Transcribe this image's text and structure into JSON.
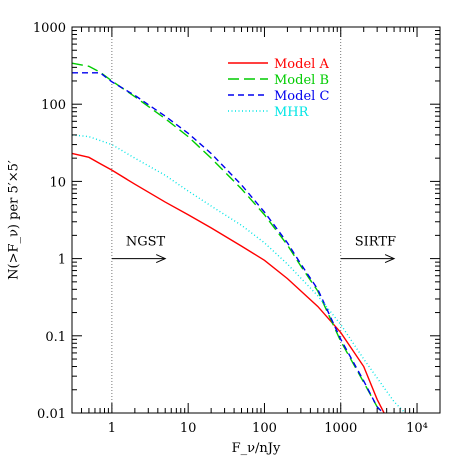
{
  "chart_data": {
    "type": "line",
    "x_scale": "log",
    "y_scale": "log",
    "xlim": [
      0.3,
      20000
    ],
    "ylim": [
      0.01,
      1000
    ],
    "xlabel": "F_ν/nJy",
    "ylabel": "N(>F_ν) per 5′×5′",
    "x_ticks": [
      {
        "value": 1,
        "label": "1"
      },
      {
        "value": 10,
        "label": "10"
      },
      {
        "value": 100,
        "label": "100"
      },
      {
        "value": 1000,
        "label": "1000"
      },
      {
        "value": 10000,
        "label": "10⁴"
      }
    ],
    "y_ticks": [
      {
        "value": 0.01,
        "label": "0.01"
      },
      {
        "value": 0.1,
        "label": "0.1"
      },
      {
        "value": 1,
        "label": "1"
      },
      {
        "value": 10,
        "label": "10"
      },
      {
        "value": 100,
        "label": "100"
      },
      {
        "value": 1000,
        "label": "1000"
      }
    ],
    "grid": false,
    "legend_position": "top-right",
    "series": [
      {
        "name": "Model A",
        "color": "#ff0000",
        "dash": "solid",
        "points": [
          [
            0.3,
            23
          ],
          [
            0.5,
            20.5
          ],
          [
            0.7,
            17
          ],
          [
            1,
            14
          ],
          [
            2,
            9.2
          ],
          [
            5,
            5.4
          ],
          [
            10,
            3.7
          ],
          [
            20,
            2.5
          ],
          [
            50,
            1.45
          ],
          [
            100,
            0.95
          ],
          [
            200,
            0.55
          ],
          [
            500,
            0.24
          ],
          [
            1000,
            0.11
          ],
          [
            2000,
            0.04
          ],
          [
            3000,
            0.015
          ],
          [
            3700,
            0.01
          ]
        ]
      },
      {
        "name": "Model B",
        "color": "#00cc00",
        "dash": "long-dash",
        "points": [
          [
            0.3,
            340
          ],
          [
            0.5,
            310
          ],
          [
            0.7,
            260
          ],
          [
            1,
            200
          ],
          [
            2,
            125
          ],
          [
            5,
            65
          ],
          [
            10,
            38
          ],
          [
            20,
            20
          ],
          [
            50,
            8
          ],
          [
            100,
            3.7
          ],
          [
            200,
            1.5
          ],
          [
            300,
            0.8
          ],
          [
            500,
            0.38
          ],
          [
            1000,
            0.085
          ],
          [
            2000,
            0.025
          ],
          [
            3000,
            0.012
          ],
          [
            3500,
            0.01
          ]
        ]
      },
      {
        "name": "Model C",
        "color": "#0000ee",
        "dash": "short-dash",
        "points": [
          [
            0.3,
            255
          ],
          [
            0.7,
            255
          ],
          [
            1,
            195
          ],
          [
            2,
            130
          ],
          [
            5,
            70
          ],
          [
            10,
            42
          ],
          [
            20,
            23
          ],
          [
            50,
            9
          ],
          [
            100,
            4
          ],
          [
            200,
            1.6
          ],
          [
            300,
            0.85
          ],
          [
            500,
            0.4
          ],
          [
            1000,
            0.09
          ],
          [
            2000,
            0.026
          ],
          [
            3000,
            0.012
          ],
          [
            3600,
            0.01
          ]
        ]
      },
      {
        "name": "MHR",
        "color": "#00e5e5",
        "dash": "dotted",
        "points": [
          [
            0.3,
            40
          ],
          [
            0.5,
            38
          ],
          [
            1,
            30
          ],
          [
            2,
            20
          ],
          [
            5,
            12
          ],
          [
            10,
            7.5
          ],
          [
            20,
            4.8
          ],
          [
            50,
            2.7
          ],
          [
            100,
            1.6
          ],
          [
            200,
            0.85
          ],
          [
            500,
            0.33
          ],
          [
            1000,
            0.14
          ],
          [
            2000,
            0.05
          ],
          [
            5000,
            0.014
          ],
          [
            7000,
            0.01
          ]
        ]
      }
    ],
    "vlines": [
      1,
      1000
    ],
    "annotations": [
      {
        "label": "NGST",
        "x_from": 1,
        "x_to": 5,
        "y": 1
      },
      {
        "label": "SIRTF",
        "x_from": 1000,
        "x_to": 5000,
        "y": 1
      }
    ]
  }
}
